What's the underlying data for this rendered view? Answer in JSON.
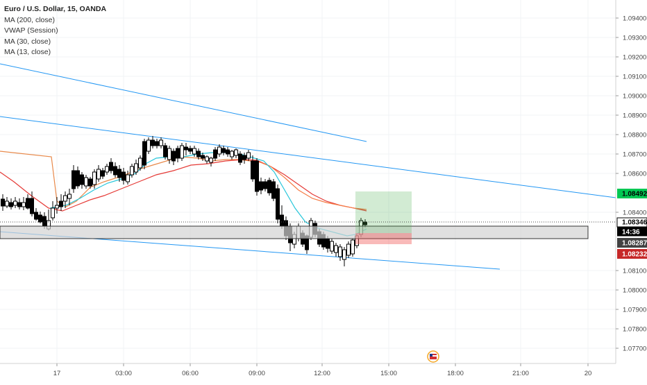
{
  "header": {
    "title": "Euro / U.S. Dollar, 15, OANDA",
    "indicators": [
      "MA (200, close)",
      "VWAP (Session)",
      "MA (30, close)",
      "MA (13, close)"
    ]
  },
  "price_axis": {
    "ticks": [
      "1.09400",
      "1.09300",
      "1.09200",
      "1.09100",
      "1.09000",
      "1.08900",
      "1.08800",
      "1.08700",
      "1.08600",
      "1.08400",
      "1.08100",
      "1.08000",
      "1.07900",
      "1.07800",
      "1.07700"
    ],
    "labels": {
      "target": "1.08492",
      "current": "1.08346",
      "countdown": "14:36",
      "entry": "1.08287",
      "stop": "1.08232"
    }
  },
  "time_axis": {
    "ticks": [
      "17",
      "03:00",
      "06:00",
      "09:00",
      "12:00",
      "15:00",
      "18:00",
      "21:00",
      "20"
    ]
  },
  "colors": {
    "up": "#ffffff",
    "down": "#000000",
    "ma200": "#f57c45",
    "vwap": "#e8894a",
    "ma30": "#e53935",
    "ma13": "#26c6da",
    "trendline": "#2196f3",
    "target_bg": "#4caf50",
    "stop_bg": "#ef5350"
  },
  "icons": {
    "flag": "us-flag-icon"
  }
}
